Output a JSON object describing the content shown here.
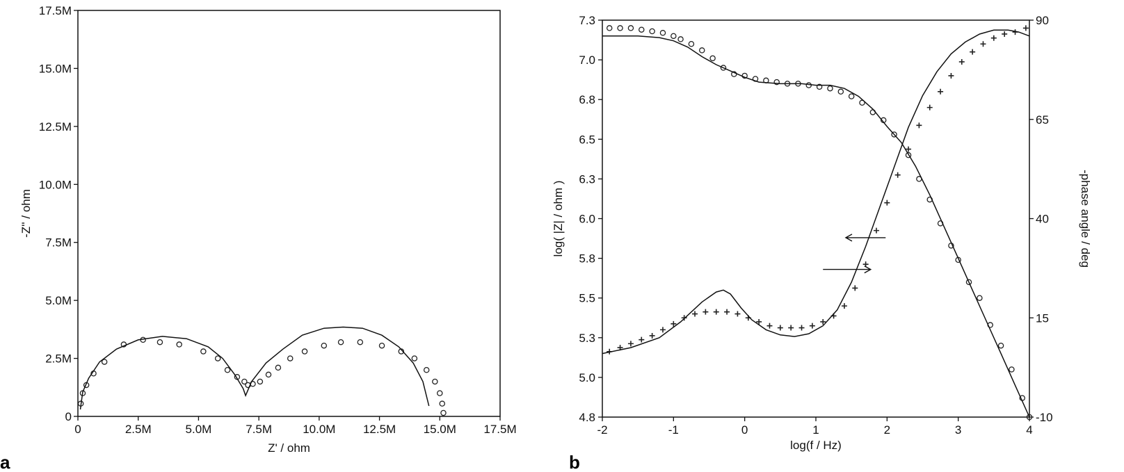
{
  "chart_data": [
    {
      "panel": "a",
      "type": "scatter",
      "xlabel": "Z' / ohm",
      "ylabel": "-Z'' / ohm",
      "xlim": [
        0,
        17.5
      ],
      "ylim": [
        0,
        17.5
      ],
      "xticks": [
        0,
        2.5,
        5,
        7.5,
        10,
        12.5,
        15,
        17.5
      ],
      "yticks": [
        0,
        2.5,
        5,
        7.5,
        10,
        12.5,
        15,
        17.5
      ],
      "xticklabels": [
        "0",
        "2.5M",
        "5.0M",
        "7.5M",
        "10.0M",
        "12.5M",
        "15.0M",
        "17.5M"
      ],
      "yticklabels": [
        "0",
        "2.5M",
        "5.0M",
        "7.5M",
        "10.0M",
        "12.5M",
        "15.0M",
        "17.5M"
      ],
      "series": [
        {
          "marker": "circle",
          "points": [
            [
              0.12,
              0.55
            ],
            [
              0.2,
              1.0
            ],
            [
              0.35,
              1.35
            ],
            [
              0.65,
              1.85
            ],
            [
              1.1,
              2.35
            ],
            [
              1.9,
              3.1
            ],
            [
              2.7,
              3.3
            ],
            [
              3.4,
              3.2
            ],
            [
              4.2,
              3.1
            ],
            [
              5.2,
              2.8
            ],
            [
              5.8,
              2.5
            ],
            [
              6.2,
              2.0
            ],
            [
              6.6,
              1.7
            ],
            [
              6.9,
              1.5
            ],
            [
              7.05,
              1.35
            ],
            [
              7.25,
              1.4
            ],
            [
              7.55,
              1.5
            ],
            [
              7.9,
              1.8
            ],
            [
              8.3,
              2.1
            ],
            [
              8.8,
              2.5
            ],
            [
              9.4,
              2.8
            ],
            [
              10.2,
              3.05
            ],
            [
              10.9,
              3.2
            ],
            [
              11.7,
              3.2
            ],
            [
              12.6,
              3.05
            ],
            [
              13.4,
              2.8
            ],
            [
              13.95,
              2.5
            ],
            [
              14.45,
              2.0
            ],
            [
              14.8,
              1.5
            ],
            [
              15.0,
              1.0
            ],
            [
              15.1,
              0.55
            ],
            [
              15.15,
              0.15
            ]
          ]
        },
        {
          "marker": "line",
          "points": [
            [
              0.1,
              0.3
            ],
            [
              0.2,
              1.05
            ],
            [
              0.45,
              1.65
            ],
            [
              0.9,
              2.35
            ],
            [
              1.6,
              2.9
            ],
            [
              2.5,
              3.3
            ],
            [
              3.5,
              3.45
            ],
            [
              4.5,
              3.35
            ],
            [
              5.4,
              3.0
            ],
            [
              6.0,
              2.5
            ],
            [
              6.5,
              1.8
            ],
            [
              6.85,
              1.2
            ],
            [
              6.95,
              0.9
            ],
            [
              7.2,
              1.5
            ],
            [
              7.8,
              2.3
            ],
            [
              8.5,
              2.9
            ],
            [
              9.3,
              3.5
            ],
            [
              10.2,
              3.8
            ],
            [
              11.0,
              3.85
            ],
            [
              11.8,
              3.8
            ],
            [
              12.6,
              3.5
            ],
            [
              13.3,
              3.0
            ],
            [
              13.9,
              2.3
            ],
            [
              14.3,
              1.5
            ],
            [
              14.55,
              0.45
            ]
          ]
        }
      ]
    },
    {
      "panel": "b",
      "type": "line",
      "xlabel": "log(f / Hz)",
      "ylabel": "log( |Z| / ohm )",
      "y2label": "-phase angle / deg",
      "xlim": [
        -2,
        4
      ],
      "ylim": [
        4.8,
        7.3
      ],
      "y2lim": [
        -10,
        90
      ],
      "xticks": [
        -2,
        -1,
        0,
        1,
        2,
        3,
        4
      ],
      "yticks": [
        4.8,
        5.05,
        5.3,
        5.55,
        5.8,
        6.05,
        6.3,
        6.55,
        6.8,
        7.05,
        7.3
      ],
      "yticklabels": [
        "4.8",
        "5.0",
        "5.3",
        "5.5",
        "5.8",
        "6.0",
        "6.3",
        "6.5",
        "6.8",
        "7.0",
        "7.3"
      ],
      "y2ticks": [
        -10,
        15,
        40,
        65,
        90
      ],
      "series": [
        {
          "marker": "circle",
          "axis": "left",
          "points": [
            [
              -1.9,
              7.25
            ],
            [
              -1.75,
              7.25
            ],
            [
              -1.6,
              7.25
            ],
            [
              -1.45,
              7.24
            ],
            [
              -1.3,
              7.23
            ],
            [
              -1.15,
              7.22
            ],
            [
              -1.0,
              7.2
            ],
            [
              -0.9,
              7.18
            ],
            [
              -0.75,
              7.15
            ],
            [
              -0.6,
              7.11
            ],
            [
              -0.45,
              7.06
            ],
            [
              -0.3,
              7.0
            ],
            [
              -0.15,
              6.96
            ],
            [
              0.0,
              6.95
            ],
            [
              0.15,
              6.93
            ],
            [
              0.3,
              6.92
            ],
            [
              0.45,
              6.91
            ],
            [
              0.6,
              6.9
            ],
            [
              0.75,
              6.9
            ],
            [
              0.9,
              6.89
            ],
            [
              1.05,
              6.88
            ],
            [
              1.2,
              6.87
            ],
            [
              1.35,
              6.85
            ],
            [
              1.5,
              6.82
            ],
            [
              1.65,
              6.78
            ],
            [
              1.8,
              6.72
            ],
            [
              1.95,
              6.67
            ],
            [
              2.1,
              6.58
            ],
            [
              2.3,
              6.45
            ],
            [
              2.45,
              6.3
            ],
            [
              2.6,
              6.17
            ],
            [
              2.75,
              6.02
            ],
            [
              2.9,
              5.88
            ],
            [
              3.0,
              5.79
            ],
            [
              3.15,
              5.65
            ],
            [
              3.3,
              5.55
            ],
            [
              3.45,
              5.38
            ],
            [
              3.6,
              5.25
            ],
            [
              3.75,
              5.1
            ],
            [
              3.9,
              4.92
            ],
            [
              4.0,
              4.8
            ]
          ]
        },
        {
          "marker": "line",
          "axis": "left",
          "points": [
            [
              -2.0,
              7.2
            ],
            [
              -1.5,
              7.2
            ],
            [
              -1.2,
              7.19
            ],
            [
              -1.0,
              7.17
            ],
            [
              -0.8,
              7.13
            ],
            [
              -0.6,
              7.07
            ],
            [
              -0.4,
              7.02
            ],
            [
              -0.2,
              6.98
            ],
            [
              0.0,
              6.94
            ],
            [
              0.2,
              6.91
            ],
            [
              0.5,
              6.9
            ],
            [
              0.8,
              6.9
            ],
            [
              1.0,
              6.89
            ],
            [
              1.2,
              6.89
            ],
            [
              1.4,
              6.87
            ],
            [
              1.6,
              6.82
            ],
            [
              1.8,
              6.74
            ],
            [
              2.0,
              6.63
            ],
            [
              2.2,
              6.53
            ],
            [
              2.4,
              6.38
            ],
            [
              2.6,
              6.2
            ],
            [
              2.8,
              6.0
            ],
            [
              3.0,
              5.8
            ],
            [
              3.2,
              5.6
            ],
            [
              3.4,
              5.4
            ],
            [
              3.6,
              5.2
            ],
            [
              3.8,
              5.0
            ],
            [
              4.0,
              4.8
            ]
          ]
        },
        {
          "marker": "plus",
          "axis": "right",
          "points": [
            [
              -1.9,
              6.5
            ],
            [
              -1.75,
              7.5
            ],
            [
              -1.6,
              8.5
            ],
            [
              -1.45,
              9.5
            ],
            [
              -1.3,
              10.5
            ],
            [
              -1.15,
              12.0
            ],
            [
              -1.0,
              13.5
            ],
            [
              -0.85,
              15.0
            ],
            [
              -0.7,
              16.0
            ],
            [
              -0.55,
              16.5
            ],
            [
              -0.4,
              16.5
            ],
            [
              -0.25,
              16.5
            ],
            [
              -0.1,
              16.0
            ],
            [
              0.05,
              15.0
            ],
            [
              0.2,
              14.0
            ],
            [
              0.35,
              13.0
            ],
            [
              0.5,
              12.5
            ],
            [
              0.65,
              12.5
            ],
            [
              0.8,
              12.5
            ],
            [
              0.95,
              13.0
            ],
            [
              1.1,
              14.0
            ],
            [
              1.25,
              15.5
            ],
            [
              1.4,
              18.0
            ],
            [
              1.55,
              22.5
            ],
            [
              1.7,
              28.5
            ],
            [
              1.85,
              37.0
            ],
            [
              2.0,
              44.0
            ],
            [
              2.15,
              51.0
            ],
            [
              2.3,
              57.5
            ],
            [
              2.45,
              63.5
            ],
            [
              2.6,
              68.0
            ],
            [
              2.75,
              72.0
            ],
            [
              2.9,
              76.0
            ],
            [
              3.05,
              79.5
            ],
            [
              3.2,
              82.0
            ],
            [
              3.35,
              84.0
            ],
            [
              3.5,
              85.5
            ],
            [
              3.65,
              86.5
            ],
            [
              3.8,
              87.0
            ],
            [
              3.95,
              88.0
            ]
          ]
        },
        {
          "marker": "line",
          "axis": "right",
          "points": [
            [
              -2.0,
              6.0
            ],
            [
              -1.6,
              7.5
            ],
            [
              -1.2,
              10.0
            ],
            [
              -0.9,
              14.0
            ],
            [
              -0.6,
              19.0
            ],
            [
              -0.4,
              21.5
            ],
            [
              -0.3,
              22.0
            ],
            [
              -0.2,
              21.0
            ],
            [
              -0.05,
              17.5
            ],
            [
              0.1,
              14.5
            ],
            [
              0.3,
              12.0
            ],
            [
              0.5,
              10.7
            ],
            [
              0.7,
              10.3
            ],
            [
              0.9,
              11.0
            ],
            [
              1.1,
              13.0
            ],
            [
              1.3,
              17.0
            ],
            [
              1.5,
              24.0
            ],
            [
              1.7,
              33.0
            ],
            [
              1.9,
              43.0
            ],
            [
              2.1,
              53.0
            ],
            [
              2.3,
              63.0
            ],
            [
              2.5,
              71.0
            ],
            [
              2.7,
              77.0
            ],
            [
              2.9,
              81.5
            ],
            [
              3.1,
              84.5
            ],
            [
              3.3,
              86.5
            ],
            [
              3.5,
              87.5
            ],
            [
              3.7,
              87.5
            ],
            [
              3.85,
              87.0
            ],
            [
              4.0,
              86.0
            ]
          ]
        }
      ]
    }
  ]
}
